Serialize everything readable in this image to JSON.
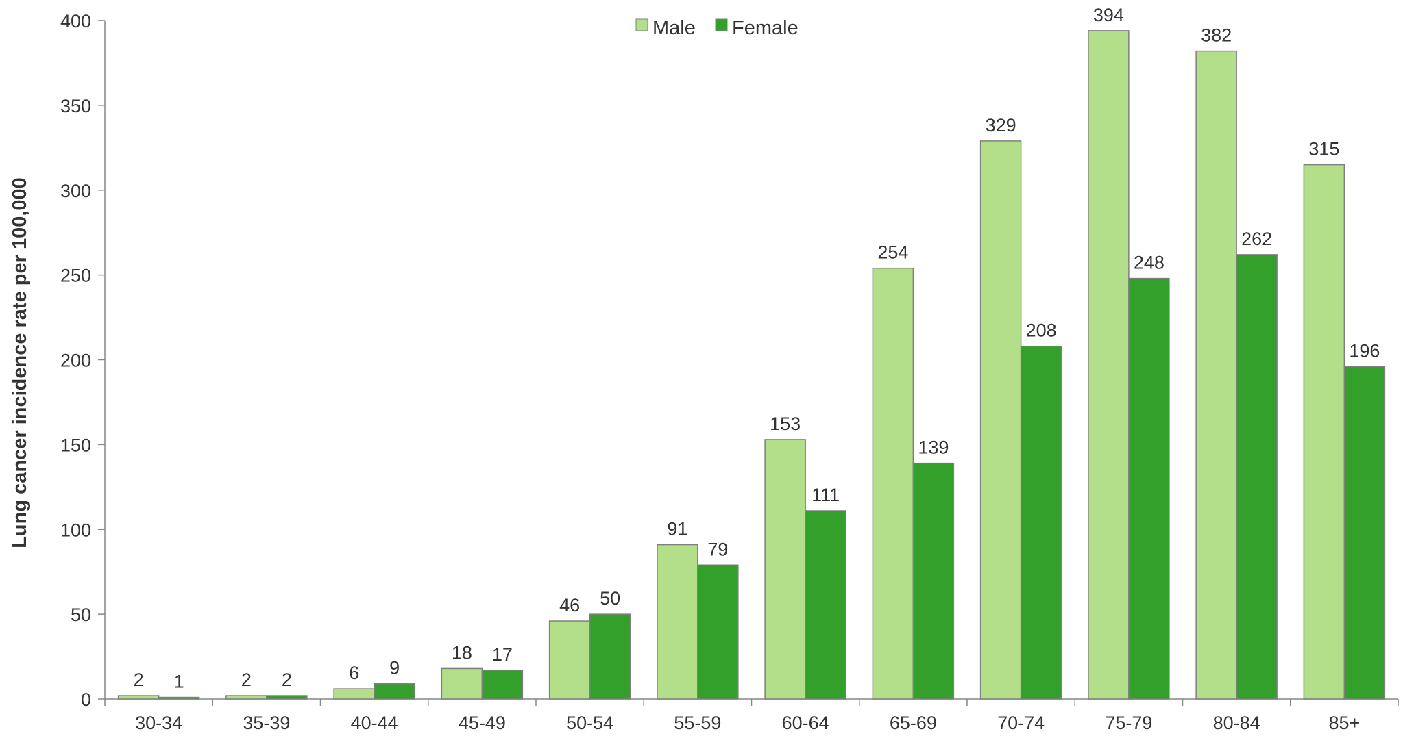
{
  "chart_data": {
    "type": "bar",
    "title": "",
    "xlabel": "",
    "ylabel": "Lung cancer incidence rate per 100,000",
    "categories": [
      "30-34",
      "35-39",
      "40-44",
      "45-49",
      "50-54",
      "55-59",
      "60-64",
      "65-69",
      "70-74",
      "75-79",
      "80-84",
      "85+"
    ],
    "series": [
      {
        "name": "Male",
        "color": "#b3df8a",
        "values": [
          2,
          2,
          6,
          18,
          46,
          91,
          153,
          254,
          329,
          394,
          382,
          315
        ]
      },
      {
        "name": "Female",
        "color": "#33a02c",
        "values": [
          1,
          2,
          9,
          17,
          50,
          79,
          111,
          139,
          208,
          248,
          262,
          196
        ]
      }
    ],
    "ylim": [
      0,
      400
    ],
    "yticks": [
      0,
      50,
      100,
      150,
      200,
      250,
      300,
      350,
      400
    ],
    "grid": false,
    "legend": "top-center",
    "data_labels": true
  }
}
